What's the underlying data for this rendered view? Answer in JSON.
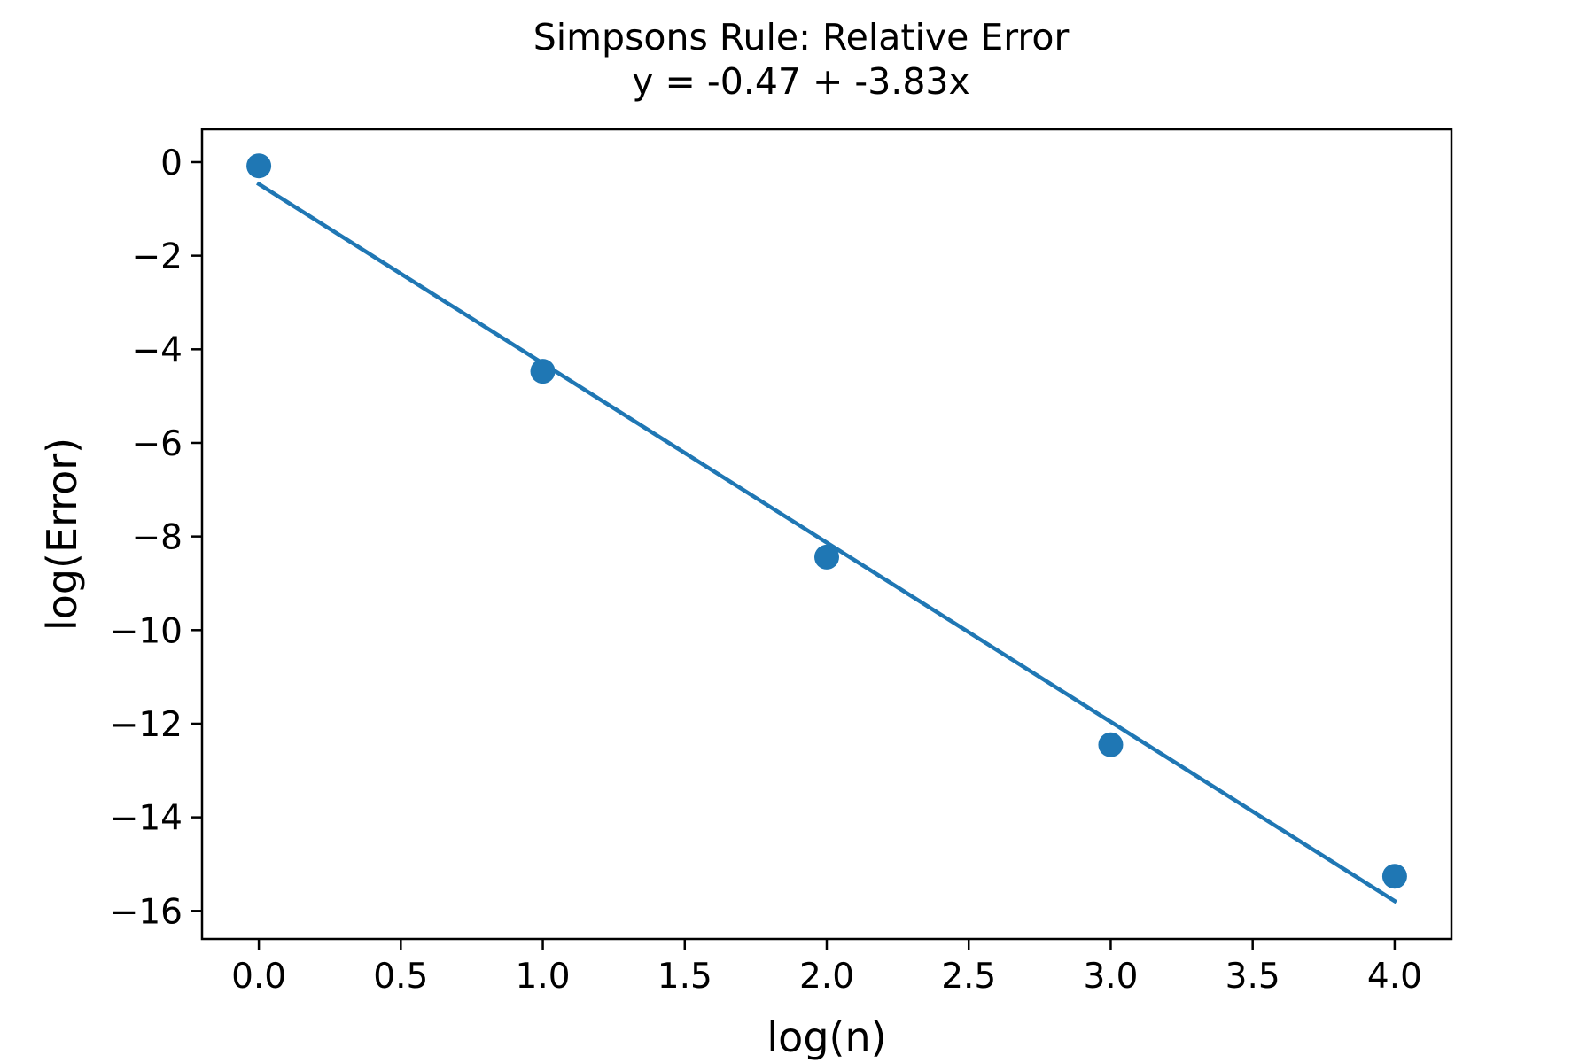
{
  "chart_data": {
    "type": "scatter",
    "title": "Simpsons Rule: Relative Error",
    "subtitle": "y = -0.47 + -3.83x",
    "xlabel": "log(n)",
    "ylabel": "log(Error)",
    "xlim": [
      -0.2,
      4.2
    ],
    "ylim": [
      -16.6,
      0.7
    ],
    "grid": false,
    "x_ticks": [
      0.0,
      0.5,
      1.0,
      1.5,
      2.0,
      2.5,
      3.0,
      3.5,
      4.0
    ],
    "x_tick_labels": [
      "0.0",
      "0.5",
      "1.0",
      "1.5",
      "2.0",
      "2.5",
      "3.0",
      "3.5",
      "4.0"
    ],
    "y_ticks": [
      0,
      -2,
      -4,
      -6,
      -8,
      -10,
      -12,
      -14,
      -16
    ],
    "y_tick_labels": [
      "0",
      "−2",
      "−4",
      "−6",
      "−8",
      "−10",
      "−12",
      "−14",
      "−16"
    ],
    "series": [
      {
        "kind": "scatter",
        "x": [
          0,
          1,
          2,
          3,
          4
        ],
        "y": [
          -0.08,
          -4.47,
          -8.44,
          -12.45,
          -15.26
        ],
        "color": "#1f77b4"
      },
      {
        "kind": "line",
        "x": [
          0,
          4
        ],
        "y": [
          -0.47,
          -15.79
        ],
        "color": "#1f77b4"
      }
    ]
  }
}
